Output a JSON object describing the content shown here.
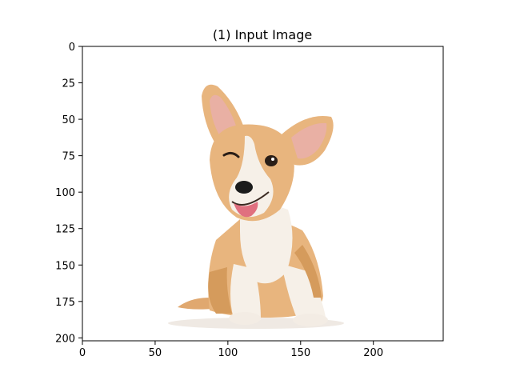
{
  "title": "(1) Input Image",
  "axes": {
    "x_ticks": [
      0,
      50,
      100,
      150,
      200
    ],
    "y_ticks": [
      0,
      25,
      50,
      75,
      100,
      125,
      150,
      175,
      200
    ],
    "x_range": [
      0,
      248
    ],
    "y_range": [
      0,
      202
    ]
  },
  "image": {
    "subject": "dog-photo",
    "colors": {
      "fur": "#e8b57e",
      "fur_dark": "#d59b5c",
      "white_fur": "#f6f0e8",
      "ear_inner": "#e9b0a4",
      "nose": "#1b1b1b",
      "tongue": "#e0707f"
    }
  }
}
